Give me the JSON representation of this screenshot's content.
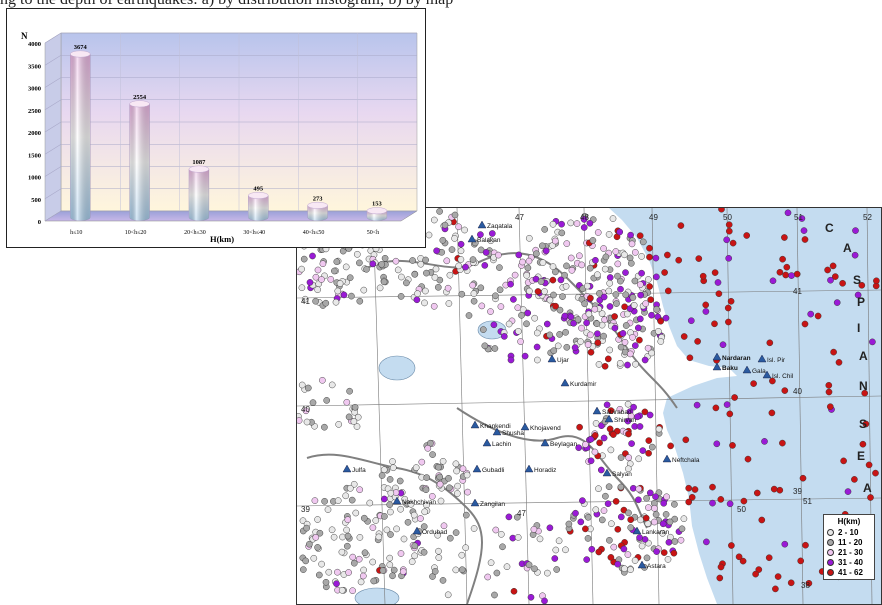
{
  "top_text": "ng to the depth of earthquakes: a) by distribution histogram; b) by map",
  "chart_data": {
    "type": "bar",
    "categories": [
      "h≤10",
      "10<h≤20",
      "20<h≤30",
      "30<h≤40",
      "40<h≤50",
      "50<h"
    ],
    "values": [
      3674,
      2554,
      1087,
      495,
      273,
      153
    ],
    "title": "",
    "xlabel": "H(km)",
    "ylabel": "N",
    "ylim": [
      0,
      4000
    ],
    "yticks": [
      0,
      500,
      1000,
      1500,
      2000,
      2500,
      3000,
      3500,
      4000
    ],
    "grid": true,
    "style": "3d-cylinder"
  },
  "map": {
    "legend_title": "H(km)",
    "legend": [
      {
        "label": "2 - 10",
        "color": "#e8e8e8"
      },
      {
        "label": "11 - 20",
        "color": "#a8a8a8"
      },
      {
        "label": "21 - 30",
        "color": "#f0c8f0"
      },
      {
        "label": "31 - 40",
        "color": "#9a1ad6"
      },
      {
        "label": "41 - 62",
        "color": "#c81414"
      }
    ],
    "sea_label": [
      "C",
      "A",
      "S",
      "P",
      "I",
      "A",
      "N",
      "S",
      "E",
      "A"
    ],
    "grid_labels": [
      "47",
      "48",
      "49",
      "50",
      "51",
      "52",
      "41",
      "40",
      "39",
      "38",
      "47",
      "50",
      "51",
      "41",
      "40",
      "39"
    ],
    "places": [
      "Zaqatala",
      "Balakan",
      "Ujar",
      "Baku",
      "Nardaran",
      "Gala",
      "Isl. Pir",
      "Isl. Chil",
      "Khankendi",
      "Shusha",
      "Khojavend",
      "Lachin",
      "Gubadli",
      "Zangilan",
      "Horadiz",
      "Beylagan",
      "Neftchala",
      "Sabirabad",
      "Kurdamir",
      "Nakhchivan",
      "Ordubad",
      "Julfa",
      "Shirvan",
      "Salyan",
      "Lankaran",
      "Astara"
    ]
  },
  "colors": {
    "sea": "#c4dcf0",
    "land": "#ffffff",
    "cyl_blue": "#a8d0f0",
    "cyl_pink": "#f0b8e8"
  }
}
